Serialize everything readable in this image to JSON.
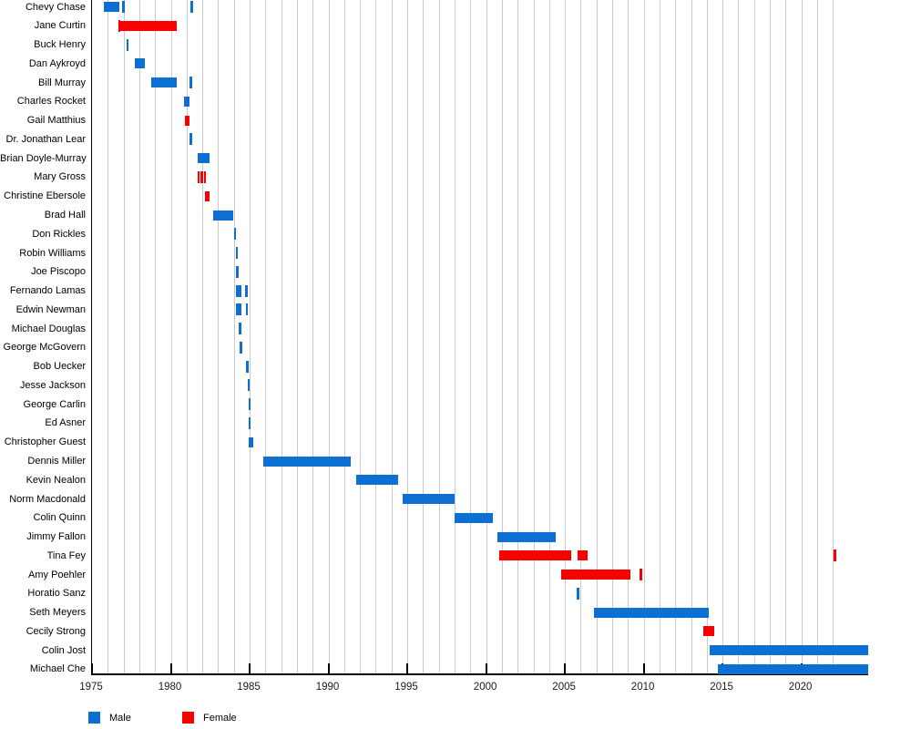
{
  "chart_data": {
    "type": "bar",
    "subtype": "gantt-timeline",
    "title": "",
    "xlabel": "",
    "ylabel": "",
    "xlim": [
      1975,
      2024.3
    ],
    "x_ticks": [
      1975,
      1980,
      1985,
      1990,
      1995,
      2000,
      2005,
      2010,
      2015,
      2020
    ],
    "grid": {
      "on": true,
      "interval_years": 1,
      "first_year": 1976,
      "last_year": 2022
    },
    "legend_position": "bottom-left",
    "colors": {
      "male": "#0d6fd1",
      "female": "#f80000"
    },
    "legend": [
      {
        "label": "Male",
        "color_key": "male"
      },
      {
        "label": "Female",
        "color_key": "female"
      }
    ],
    "rows": [
      {
        "name": "Chevy Chase",
        "gender": "male",
        "bars": [
          [
            1975.72,
            1976.75
          ]
        ],
        "ticks": [
          1976.93,
          1981.25
        ]
      },
      {
        "name": "Jane Curtin",
        "gender": "female",
        "bars": [
          [
            1976.78,
            1980.37
          ]
        ],
        "ticks": [
          1976.65
        ]
      },
      {
        "name": "Buck Henry",
        "gender": "male",
        "bars": [],
        "ticks": [
          1977.18
        ]
      },
      {
        "name": "Dan Aykroyd",
        "gender": "male",
        "bars": [
          [
            1977.73,
            1978.37
          ]
        ],
        "ticks": []
      },
      {
        "name": "Bill Murray",
        "gender": "male",
        "bars": [
          [
            1978.75,
            1980.37
          ]
        ],
        "ticks": [
          1981.19
        ]
      },
      {
        "name": "Charles Rocket",
        "gender": "male",
        "bars": [
          [
            1980.86,
            1981.21
          ]
        ],
        "ticks": []
      },
      {
        "name": "Gail Matthius",
        "gender": "female",
        "bars": [
          [
            1980.92,
            1981.19
          ]
        ],
        "ticks": []
      },
      {
        "name": "Dr. Jonathan Lear",
        "gender": "male",
        "bars": [],
        "ticks": [
          1981.21
        ]
      },
      {
        "name": "Brian Doyle-Murray",
        "gender": "male",
        "bars": [
          [
            1981.73,
            1982.44
          ]
        ],
        "ticks": []
      },
      {
        "name": "Mary Gross",
        "gender": "female",
        "bars": [],
        "ticks": [
          1981.68,
          1981.89,
          1982.1
        ]
      },
      {
        "name": "Christine Ebersole",
        "gender": "female",
        "bars": [
          [
            1982.17,
            1982.46
          ]
        ],
        "ticks": []
      },
      {
        "name": "Brad Hall",
        "gender": "male",
        "bars": [
          [
            1982.69,
            1983.98
          ]
        ],
        "ticks": []
      },
      {
        "name": "Don Rickles",
        "gender": "male",
        "bars": [],
        "ticks": [
          1984.0
        ]
      },
      {
        "name": "Robin Williams",
        "gender": "male",
        "bars": [],
        "ticks": [
          1984.1
        ]
      },
      {
        "name": "Joe Piscopo",
        "gender": "male",
        "bars": [],
        "ticks": [
          1984.13
        ]
      },
      {
        "name": "Fernando Lamas",
        "gender": "male",
        "bars": [],
        "ticks": [
          1984.13,
          1984.31,
          1984.71
        ]
      },
      {
        "name": "Edwin Newman",
        "gender": "male",
        "bars": [],
        "ticks": [
          1984.13,
          1984.31,
          1984.75
        ]
      },
      {
        "name": "Michael Douglas",
        "gender": "male",
        "bars": [],
        "ticks": [
          1984.33
        ]
      },
      {
        "name": "George McGovern",
        "gender": "male",
        "bars": [],
        "ticks": [
          1984.37
        ]
      },
      {
        "name": "Bob Uecker",
        "gender": "male",
        "bars": [],
        "ticks": [
          1984.77
        ]
      },
      {
        "name": "Jesse Jackson",
        "gender": "male",
        "bars": [],
        "ticks": [
          1984.87
        ]
      },
      {
        "name": "George Carlin",
        "gender": "male",
        "bars": [],
        "ticks": [
          1984.91
        ]
      },
      {
        "name": "Ed Asner",
        "gender": "male",
        "bars": [],
        "ticks": [
          1984.93
        ]
      },
      {
        "name": "Christopher Guest",
        "gender": "male",
        "bars": [
          [
            1984.91,
            1985.25
          ]
        ],
        "ticks": []
      },
      {
        "name": "Dennis Miller",
        "gender": "male",
        "bars": [
          [
            1985.87,
            1991.41
          ]
        ],
        "ticks": []
      },
      {
        "name": "Kevin Nealon",
        "gender": "male",
        "bars": [
          [
            1991.77,
            1994.43
          ]
        ],
        "ticks": []
      },
      {
        "name": "Norm Macdonald",
        "gender": "male",
        "bars": [
          [
            1994.68,
            1998.02
          ]
        ],
        "ticks": []
      },
      {
        "name": "Colin Quinn",
        "gender": "male",
        "bars": [
          [
            1998.02,
            2000.45
          ]
        ],
        "ticks": []
      },
      {
        "name": "Jimmy Fallon",
        "gender": "male",
        "bars": [
          [
            2000.74,
            2004.43
          ]
        ],
        "ticks": []
      },
      {
        "name": "Tina Fey",
        "gender": "female",
        "bars": [
          [
            2000.83,
            2005.43
          ],
          [
            2005.83,
            2006.45
          ]
        ],
        "ticks": [
          2022.06
        ]
      },
      {
        "name": "Amy Poehler",
        "gender": "female",
        "bars": [
          [
            2004.77,
            2009.14
          ]
        ],
        "ticks": [
          2009.76
        ]
      },
      {
        "name": "Horatio Sanz",
        "gender": "male",
        "bars": [],
        "ticks": [
          2005.77
        ]
      },
      {
        "name": "Seth Meyers",
        "gender": "male",
        "bars": [
          [
            2006.83,
            2014.14
          ]
        ],
        "ticks": []
      },
      {
        "name": "Cecily Strong",
        "gender": "female",
        "bars": [
          [
            2013.77,
            2014.45
          ]
        ],
        "ticks": []
      },
      {
        "name": "Colin Jost",
        "gender": "male",
        "bars": [
          [
            2014.17,
            2024.25
          ]
        ],
        "ticks": []
      },
      {
        "name": "Michael Che",
        "gender": "male",
        "bars": [
          [
            2014.72,
            2024.22
          ]
        ],
        "ticks": []
      }
    ]
  }
}
